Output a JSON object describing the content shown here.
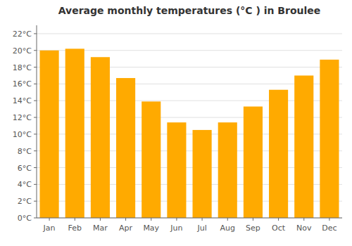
{
  "chart_data": {
    "type": "bar",
    "title": "Average monthly temperatures (°C ) in Broulee",
    "categories": [
      "Jan",
      "Feb",
      "Mar",
      "Apr",
      "May",
      "Jun",
      "Jul",
      "Aug",
      "Sep",
      "Oct",
      "Nov",
      "Dec"
    ],
    "values": [
      20.0,
      20.2,
      19.2,
      16.7,
      13.9,
      11.4,
      10.5,
      11.4,
      13.3,
      15.3,
      17.0,
      18.9
    ],
    "color": "#FFAA00",
    "ylim": [
      0,
      23
    ],
    "yticks": [
      {
        "value": 0,
        "label": "0°C"
      },
      {
        "value": 2,
        "label": "2°C"
      },
      {
        "value": 4,
        "label": "4°C"
      },
      {
        "value": 6,
        "label": "6°C"
      },
      {
        "value": 8,
        "label": "8°C"
      },
      {
        "value": 10,
        "label": "10°C"
      },
      {
        "value": 12,
        "label": "12°C"
      },
      {
        "value": 14,
        "label": "14°C"
      },
      {
        "value": 16,
        "label": "16°C"
      },
      {
        "value": 18,
        "label": "18°C"
      },
      {
        "value": 20,
        "label": "20°C"
      },
      {
        "value": 22,
        "label": "22°C"
      }
    ],
    "grid": true
  }
}
